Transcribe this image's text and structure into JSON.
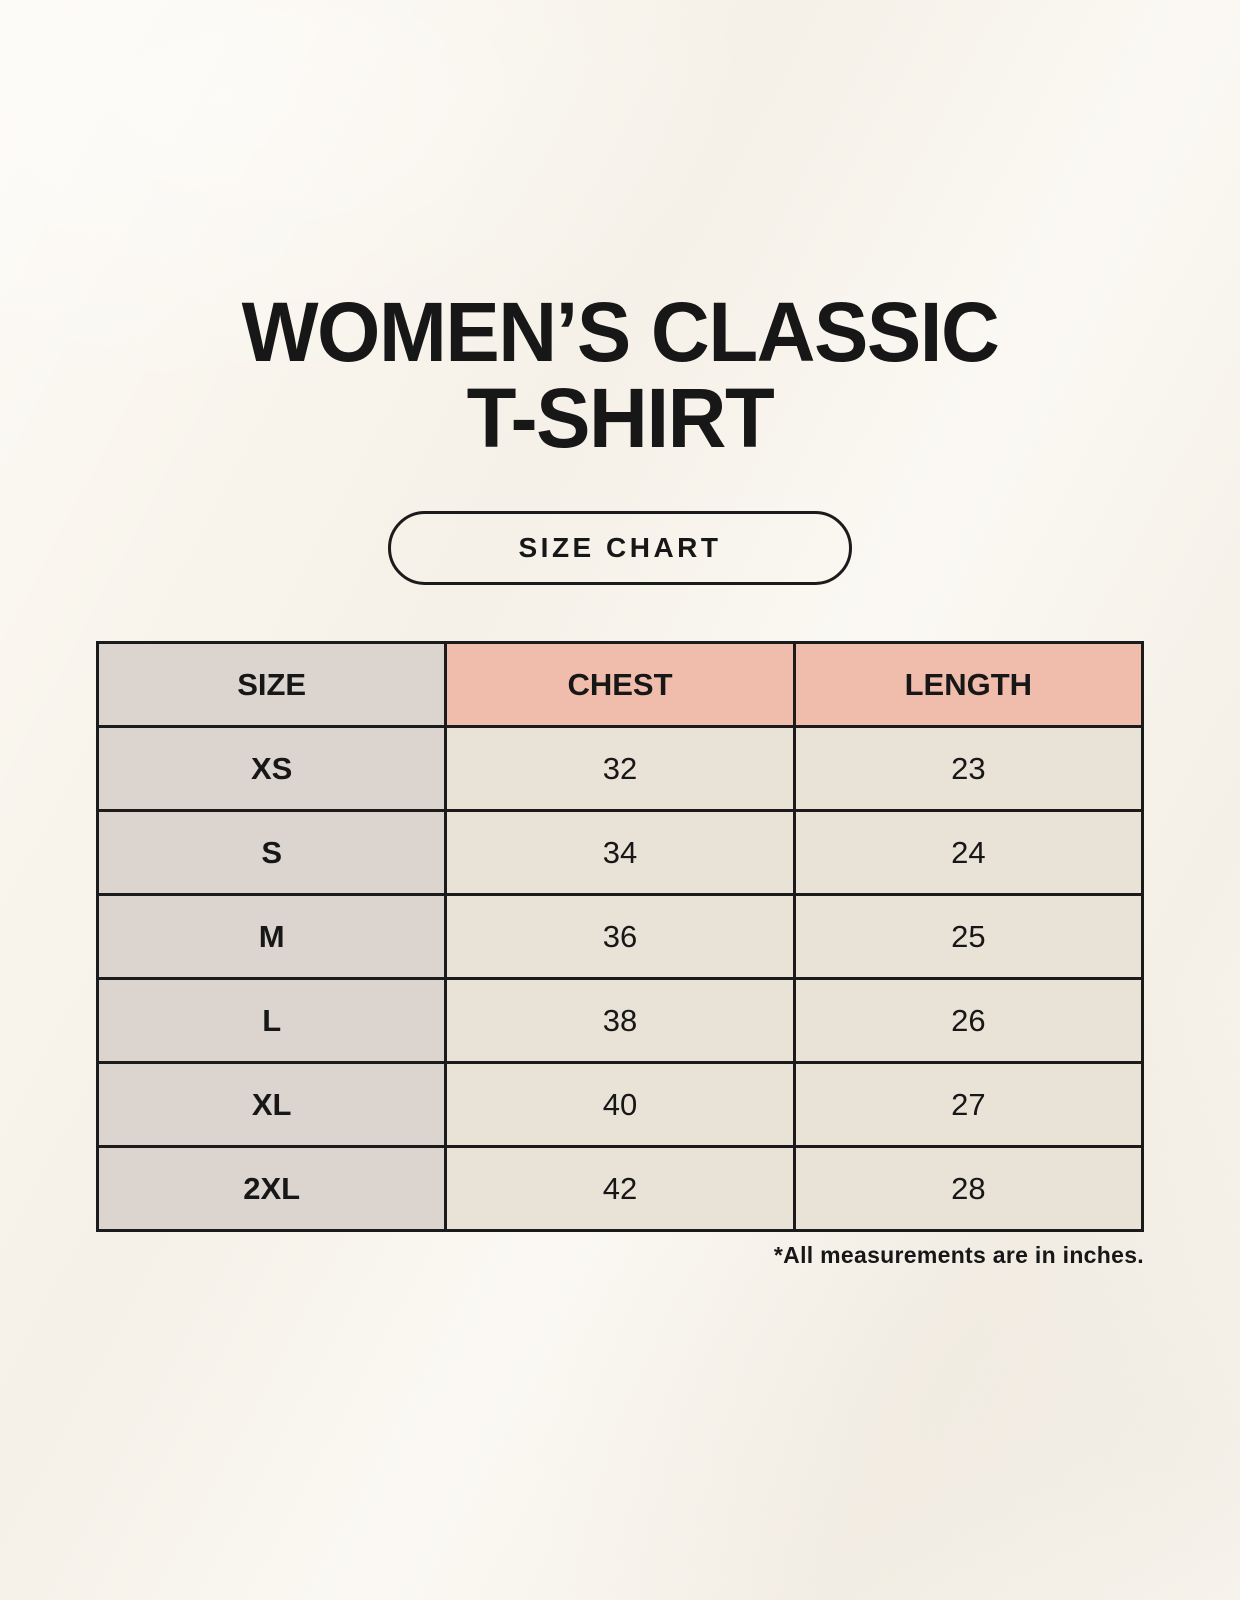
{
  "header": {
    "title_line1": "WOMEN’S CLASSIC",
    "title_line2": "T-SHIRT",
    "badge_label": "SIZE CHART"
  },
  "footnote": "*All measurements are in inches.",
  "colors": {
    "background": "#f9f5ed",
    "text": "#171717",
    "border": "#1b1b1b",
    "header_size_bg": "#dcd5cf",
    "header_measure_bg": "#f0bcab",
    "row_label_bg": "#dcd5cf",
    "cell_bg": "#e9e2d7"
  },
  "chart_data": {
    "type": "table",
    "title": "WOMEN’S CLASSIC T-SHIRT SIZE CHART",
    "columns": [
      "SIZE",
      "CHEST",
      "LENGTH"
    ],
    "units": "inches",
    "rows": [
      {
        "size": "XS",
        "chest": 32,
        "length": 23
      },
      {
        "size": "S",
        "chest": 34,
        "length": 24
      },
      {
        "size": "M",
        "chest": 36,
        "length": 25
      },
      {
        "size": "L",
        "chest": 38,
        "length": 26
      },
      {
        "size": "XL",
        "chest": 40,
        "length": 27
      },
      {
        "size": "2XL",
        "chest": 42,
        "length": 28
      }
    ]
  }
}
